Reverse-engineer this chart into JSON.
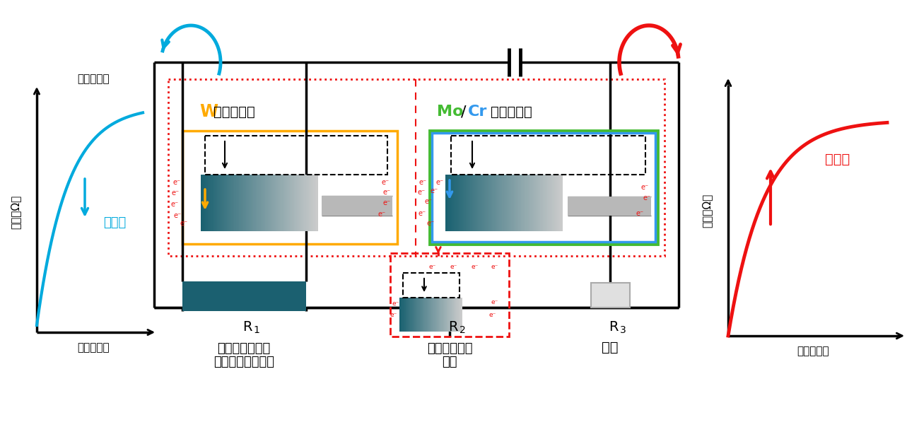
{
  "bg_color": "#ffffff",
  "teal_color": "#1b6070",
  "cyan_color": "#00aadd",
  "red_color": "#ee1111",
  "orange_color": "#ffaa00",
  "green_color": "#44bb33",
  "blue_color": "#3399ee",
  "black": "#000000",
  "gray_light": "#dddddd",
  "gray_electrode": "#cccccc",
  "left_graph": {
    "xlabel": "時間（分）",
    "ylabel": "抵抗（Ω）",
    "label_down": "下向き"
  },
  "right_graph": {
    "xlabel": "時間（分）",
    "ylabel": "抵抗（Ω）",
    "label_up": "上向き"
  },
  "labels": {
    "W": "W",
    "doping_suffix": "ドーピング",
    "Mo": "Mo",
    "slash": "/",
    "Cr": "Cr",
    "R1": "R",
    "R1_sub": "1",
    "R2": "R",
    "R2_sub": "2",
    "R3": "R",
    "R3_sub": "3",
    "gas_text1": "ガスを吸着した",
    "gas_text2": "二酸化バナジウム",
    "schottky1": "ショットキー",
    "schottky2": "接合",
    "electrode": "電極"
  }
}
